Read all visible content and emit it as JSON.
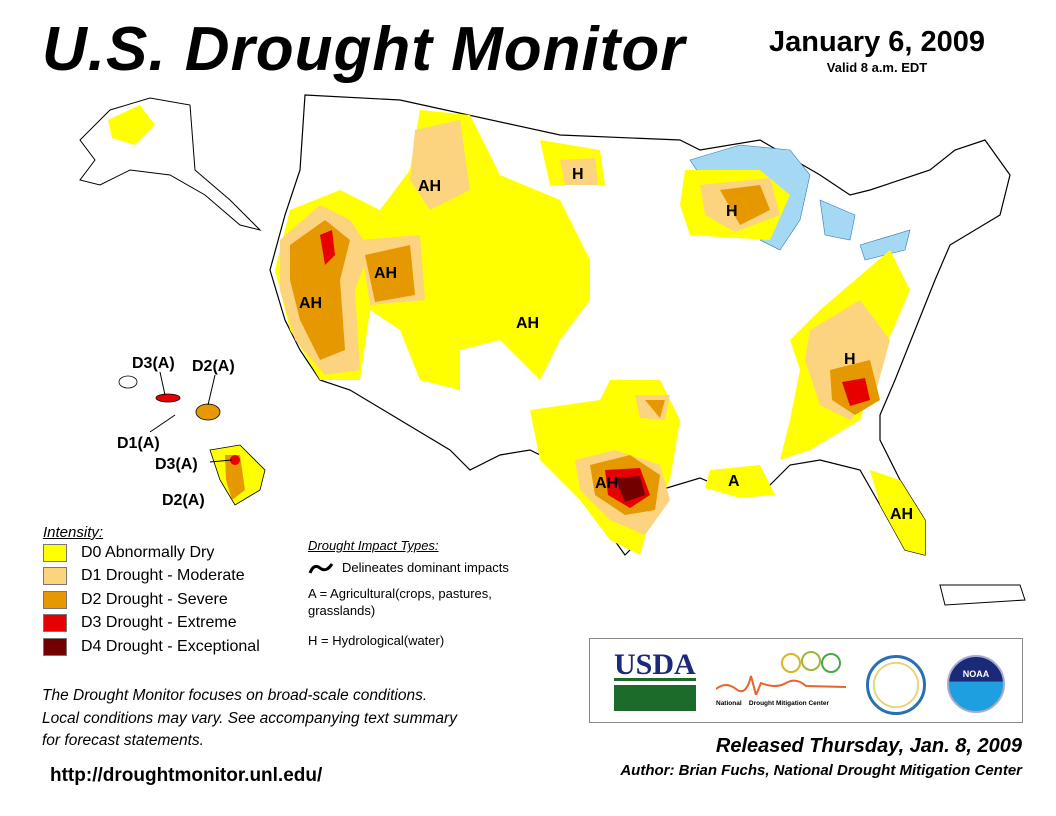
{
  "header": {
    "title": "U.S. Drought Monitor",
    "date": "January 6, 2009",
    "valid": "Valid 8 a.m. EDT"
  },
  "colors": {
    "D0": "#FFFF00",
    "D1": "#FCD37F",
    "D2": "#E69800",
    "D3": "#E60000",
    "D4": "#730000",
    "water": "#A5D8F3"
  },
  "map_labels": {
    "ah_idaho_montana": "AH",
    "h_north_dakota": "H",
    "h_wisconsin": "H",
    "ah_nevada_utah": "AH",
    "ah_california": "AH",
    "ah_colorado": "AH",
    "h_southeast": "H",
    "ah_texas": "AH",
    "a_louisiana": "A",
    "ah_florida": "AH",
    "hi_d3_kauai": "D3(A)",
    "hi_d2_maui": "D2(A)",
    "hi_d1_oahu": "D1(A)",
    "hi_d3_big_island": "D3(A)",
    "hi_d2_big_island": "D2(A)"
  },
  "legend": {
    "title": "Intensity:",
    "items": [
      {
        "code": "D0",
        "label": "D0 Abnormally Dry"
      },
      {
        "code": "D1",
        "label": "D1 Drought - Moderate"
      },
      {
        "code": "D2",
        "label": "D2 Drought - Severe"
      },
      {
        "code": "D3",
        "label": "D3 Drought - Extreme"
      },
      {
        "code": "D4",
        "label": "D4 Drought - Exceptional"
      }
    ]
  },
  "impacts": {
    "title": "Drought Impact Types:",
    "delineates": "Delineates dominant impacts",
    "agricultural": "A = Agricultural(crops, pastures, grasslands)",
    "hydrological": "H = Hydrological(water)"
  },
  "note": {
    "line1": "The Drought Monitor focuses on broad-scale conditions.",
    "line2": "Local conditions may vary. See accompanying text summary",
    "line3": "for forecast statements."
  },
  "url": "http://droughtmonitor.unl.edu/",
  "logos": {
    "usda": "USDA",
    "ndmc_1": "National",
    "ndmc_2": "Drought Mitigation Center",
    "noaa": "NOAA"
  },
  "footer": {
    "released": "Released Thursday, Jan. 8, 2009",
    "author": "Author: Brian Fuchs, National Drought Mitigation Center"
  }
}
